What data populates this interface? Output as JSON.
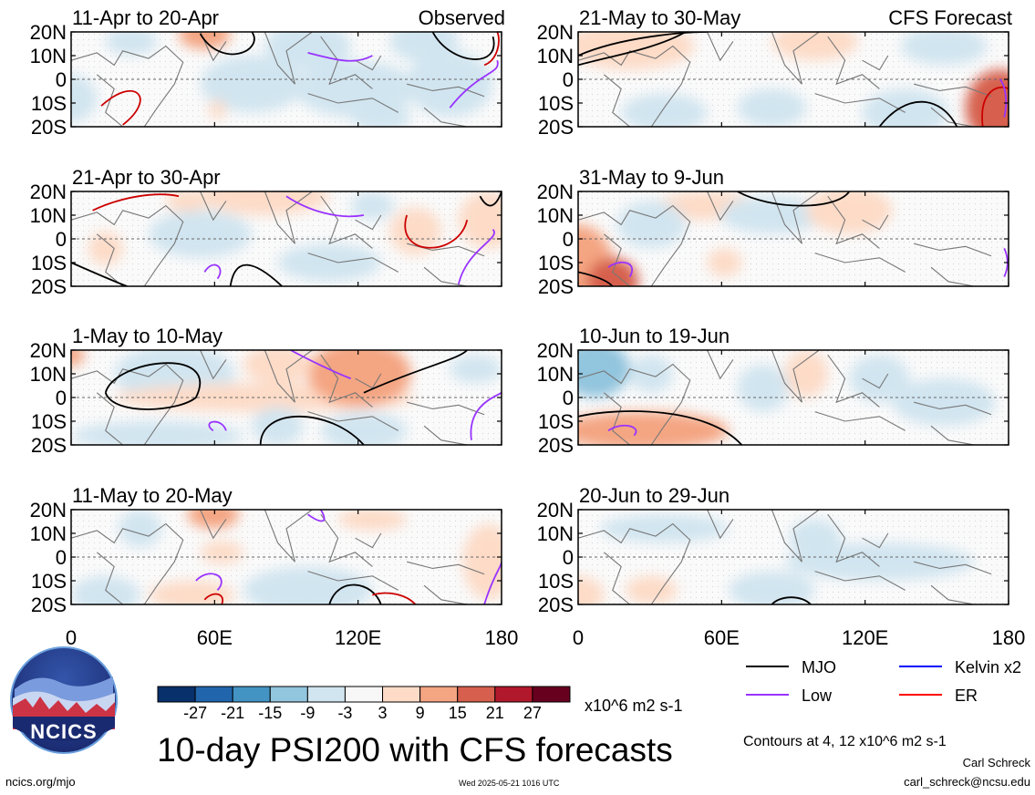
{
  "chart_data": {
    "type": "heatmap",
    "title": "10-day PSI200 with CFS forecasts",
    "variable": "PSI200",
    "units": "x10^6 m2 s-1",
    "lat_ticks": [
      "20N",
      "10N",
      "0",
      "10S",
      "20S"
    ],
    "lon_ticks": [
      "0",
      "60E",
      "120E",
      "180"
    ],
    "observed_label": "Observed",
    "forecast_label": "CFS Forecast",
    "observed_panels": [
      {
        "label": "11-Apr to 20-Apr"
      },
      {
        "label": "21-Apr to 30-Apr"
      },
      {
        "label": "1-May to 10-May"
      },
      {
        "label": "11-May to 20-May"
      }
    ],
    "forecast_panels": [
      {
        "label": "21-May to 30-May"
      },
      {
        "label": "31-May to 9-Jun"
      },
      {
        "label": "10-Jun to 19-Jun"
      },
      {
        "label": "20-Jun to 29-Jun"
      }
    ],
    "colorbar": {
      "labels": [
        "-27",
        "-21",
        "-15",
        "-9",
        "-3",
        "3",
        "9",
        "15",
        "21",
        "27"
      ],
      "colors": [
        "#08306b",
        "#2166ac",
        "#4393c3",
        "#92c5de",
        "#d1e5f0",
        "#f7f7f7",
        "#fddbc7",
        "#f4a582",
        "#d6604d",
        "#b2182b",
        "#67001f"
      ]
    },
    "legend": [
      {
        "label": "MJO",
        "color": "#000000"
      },
      {
        "label": "Kelvin x2",
        "color": "#0000ff"
      },
      {
        "label": "Low",
        "color": "#9933ff"
      },
      {
        "label": "ER",
        "color": "#ff0000"
      }
    ],
    "contour_note": "Contours at 4, 12 x10^6 m2 s-1"
  },
  "logo_text": "NCICS",
  "footer": {
    "url": "ncics.org/mjo",
    "timestamp": "Wed 2025-05-21 1016 UTC",
    "author": "Carl Schreck",
    "email": "carl_schreck@ncsu.edu"
  }
}
